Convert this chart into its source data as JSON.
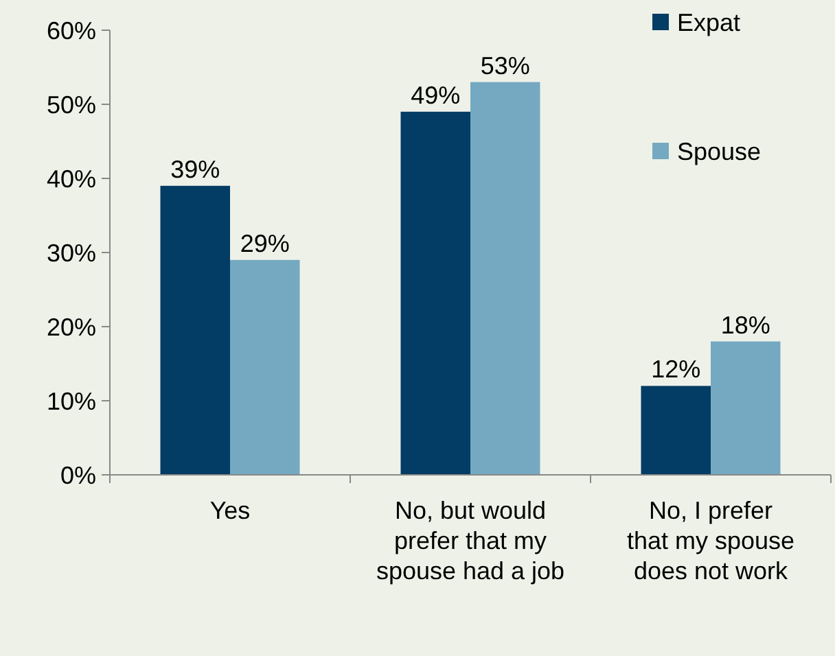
{
  "chart_data": {
    "type": "bar",
    "categories": [
      "Yes",
      "No, but would prefer that my spouse had a job",
      "No, I prefer that my spouse does not work"
    ],
    "series": [
      {
        "name": "Expat",
        "color": "#033c64",
        "values": [
          39,
          49,
          12
        ],
        "value_labels": [
          "39%",
          "49%",
          "12%"
        ]
      },
      {
        "name": "Spouse",
        "color": "#74a9c1",
        "values": [
          29,
          53,
          18
        ],
        "value_labels": [
          "29%",
          "53%",
          "18%"
        ]
      }
    ],
    "ylim": [
      0,
      60
    ],
    "yticks": [
      {
        "value": 0,
        "label": "0%"
      },
      {
        "value": 10,
        "label": "10%"
      },
      {
        "value": 20,
        "label": "20%"
      },
      {
        "value": 30,
        "label": "30%"
      },
      {
        "value": 40,
        "label": "40%"
      },
      {
        "value": 50,
        "label": "50%"
      },
      {
        "value": 60,
        "label": "60%"
      }
    ],
    "legend": "top right"
  }
}
